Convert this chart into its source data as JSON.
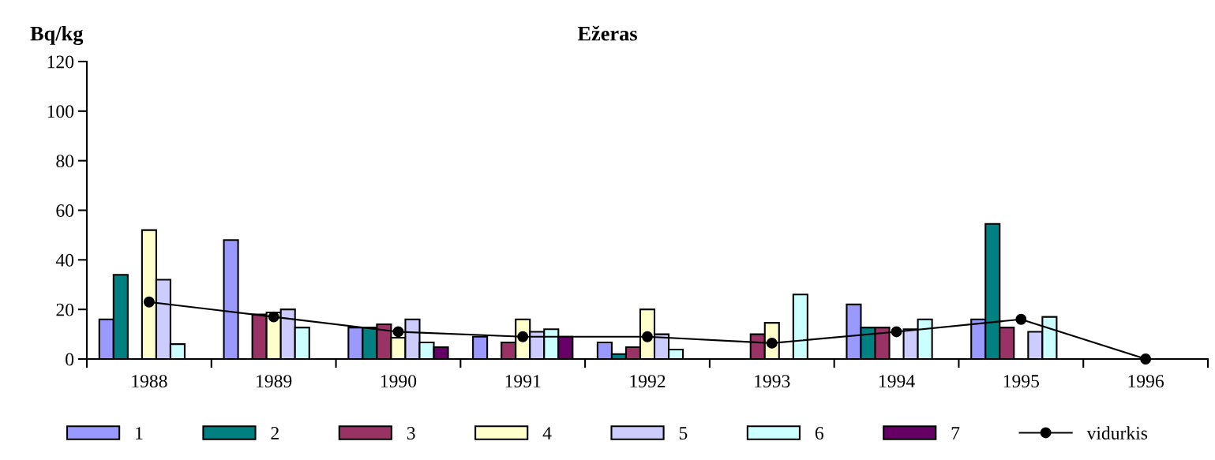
{
  "chart_data": {
    "type": "bar",
    "title": "Ežeras",
    "ylabel": "Bq/kg",
    "categories": [
      "1988",
      "1989",
      "1990",
      "1991",
      "1992",
      "1993",
      "1994",
      "1995",
      "1996"
    ],
    "series": [
      {
        "name": "1",
        "color": "#9999ff",
        "values": [
          16,
          48,
          12.7,
          9,
          6.7,
          null,
          22,
          16,
          null
        ]
      },
      {
        "name": "2",
        "color": "#008080",
        "values": [
          34,
          null,
          12.7,
          null,
          2,
          null,
          12.7,
          54.5,
          null
        ]
      },
      {
        "name": "3",
        "color": "#993366",
        "values": [
          null,
          18,
          14,
          6.7,
          4.8,
          10,
          12.7,
          12.7,
          null
        ]
      },
      {
        "name": "4",
        "color": "#ffffcc",
        "values": [
          52,
          18.8,
          8.6,
          16,
          20,
          14.6,
          null,
          null,
          null
        ]
      },
      {
        "name": "5",
        "color": "#ccccff",
        "values": [
          32,
          20,
          16,
          11,
          10,
          null,
          12,
          11,
          null
        ]
      },
      {
        "name": "6",
        "color": "#ccffff",
        "values": [
          6,
          12.7,
          6.7,
          12,
          3.8,
          26,
          16,
          17,
          null
        ]
      },
      {
        "name": "7",
        "color": "#660066",
        "values": [
          null,
          null,
          4.8,
          9,
          null,
          null,
          null,
          null,
          null
        ]
      },
      {
        "name": "vidurkis",
        "type": "line",
        "color": "#000000",
        "marker": "circle",
        "values": [
          23,
          17,
          11,
          9,
          9,
          6.4,
          11,
          16,
          0
        ]
      }
    ],
    "ylim": [
      0,
      120
    ],
    "yticks": [
      0,
      20,
      40,
      60,
      80,
      100,
      120
    ],
    "grid": false,
    "legend": "bottom"
  }
}
